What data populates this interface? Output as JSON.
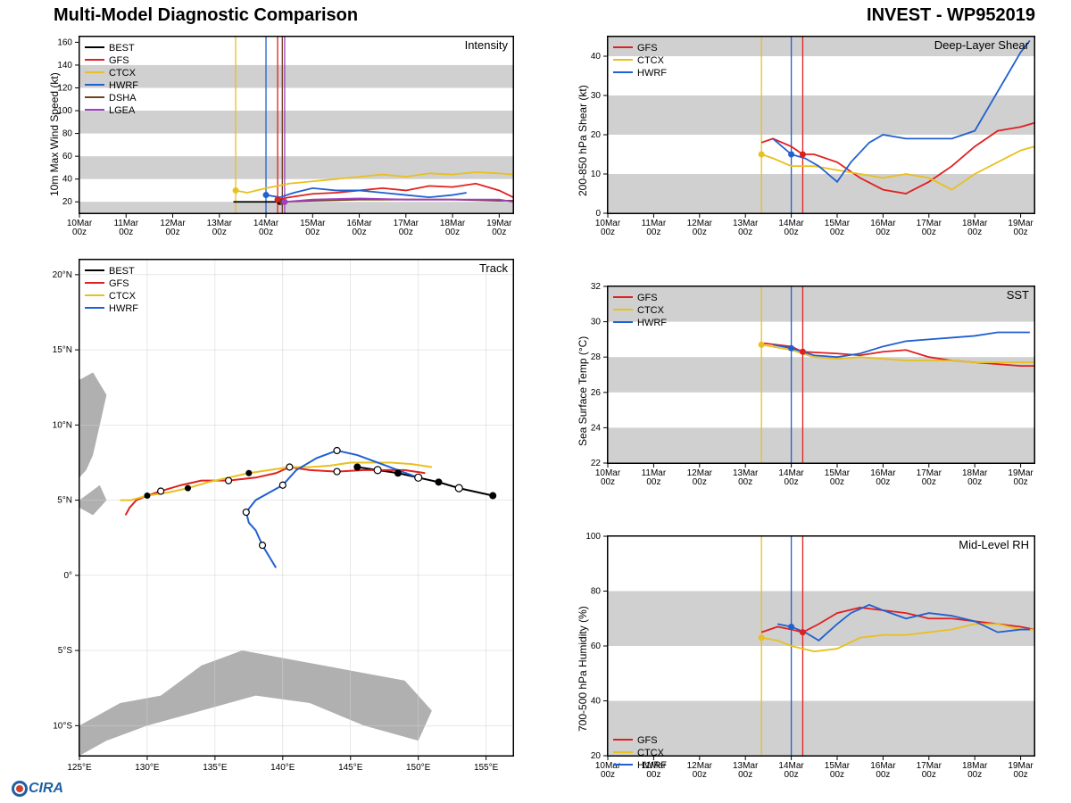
{
  "header": {
    "title_left": "Multi-Model Diagnostic Comparison",
    "title_right": "INVEST - WP952019"
  },
  "colors": {
    "BEST": "#000000",
    "GFS": "#e02020",
    "CTCX": "#e8c020",
    "HWRF": "#2060d0",
    "DSHA": "#704020",
    "LGEA": "#a040c0",
    "grid_band": "#d0d0d0",
    "grid_line": "#d0d0d0",
    "land": "#b0b0b0",
    "border": "#000000"
  },
  "x_time": {
    "ticks": [
      "10Mar\n00z",
      "11Mar\n00z",
      "12Mar\n00z",
      "13Mar\n00z",
      "14Mar\n00z",
      "15Mar\n00z",
      "16Mar\n00z",
      "17Mar\n00z",
      "18Mar\n00z",
      "19Mar\n00z"
    ],
    "indices": [
      0,
      1,
      2,
      3,
      4,
      5,
      6,
      7,
      8,
      9
    ]
  },
  "intensity": {
    "title": "Intensity",
    "ylabel": "10m Max Wind Speed (kt)",
    "ylim": [
      10,
      165
    ],
    "yticks": [
      20,
      40,
      60,
      80,
      100,
      120,
      140,
      160
    ],
    "legend": [
      "BEST",
      "GFS",
      "CTCX",
      "HWRF",
      "DSHA",
      "LGEA"
    ],
    "bands": [
      [
        10,
        20
      ],
      [
        40,
        60
      ],
      [
        80,
        100
      ],
      [
        120,
        140
      ]
    ],
    "vlines": {
      "CTCX": 3.35,
      "HWRF": 4.0,
      "GFS": 4.25,
      "DSHA": 4.35,
      "LGEA": 4.4
    },
    "series": {
      "BEST": [
        [
          3.3,
          20
        ],
        [
          3.6,
          20
        ],
        [
          4.0,
          20
        ],
        [
          4.3,
          20
        ]
      ],
      "GFS": [
        [
          4.25,
          22
        ],
        [
          4.5,
          24
        ],
        [
          5.0,
          27
        ],
        [
          5.5,
          28
        ],
        [
          6.0,
          30
        ],
        [
          6.5,
          32
        ],
        [
          7.0,
          30
        ],
        [
          7.5,
          34
        ],
        [
          8.0,
          33
        ],
        [
          8.5,
          36
        ],
        [
          9.0,
          30
        ],
        [
          9.3,
          24
        ]
      ],
      "CTCX": [
        [
          3.35,
          30
        ],
        [
          3.6,
          28
        ],
        [
          4.0,
          32
        ],
        [
          4.5,
          36
        ],
        [
          5.0,
          38
        ],
        [
          5.5,
          40
        ],
        [
          6.0,
          42
        ],
        [
          6.5,
          44
        ],
        [
          7.0,
          42
        ],
        [
          7.5,
          45
        ],
        [
          8.0,
          44
        ],
        [
          8.5,
          46
        ],
        [
          9.0,
          45
        ],
        [
          9.3,
          44
        ]
      ],
      "HWRF": [
        [
          4.0,
          26
        ],
        [
          4.3,
          24
        ],
        [
          4.6,
          28
        ],
        [
          5.0,
          32
        ],
        [
          5.5,
          30
        ],
        [
          6.0,
          30
        ],
        [
          6.5,
          28
        ],
        [
          7.0,
          26
        ],
        [
          7.5,
          24
        ],
        [
          8.0,
          26
        ],
        [
          8.3,
          28
        ]
      ],
      "DSHA": [
        [
          4.35,
          20
        ],
        [
          5.0,
          21
        ],
        [
          6.0,
          22
        ],
        [
          7.0,
          22
        ],
        [
          8.0,
          22
        ],
        [
          9.0,
          21
        ],
        [
          9.3,
          21
        ]
      ],
      "LGEA": [
        [
          4.4,
          20
        ],
        [
          5.0,
          22
        ],
        [
          6.0,
          23
        ],
        [
          7.0,
          22
        ],
        [
          8.0,
          22
        ],
        [
          9.0,
          22
        ],
        [
          9.3,
          20
        ]
      ]
    },
    "markers": {
      "BEST": [
        4.3,
        20
      ],
      "GFS": [
        4.25,
        22
      ],
      "CTCX": [
        3.35,
        30
      ],
      "HWRF": [
        4.0,
        26
      ],
      "DSHA": [
        4.35,
        20
      ],
      "LGEA": [
        4.4,
        20
      ]
    }
  },
  "shear": {
    "title": "Deep-Layer Shear",
    "ylabel": "200-850 hPa Shear (kt)",
    "ylim": [
      0,
      45
    ],
    "yticks": [
      0,
      10,
      20,
      30,
      40
    ],
    "legend": [
      "GFS",
      "CTCX",
      "HWRF"
    ],
    "bands": [
      [
        0,
        10
      ],
      [
        20,
        30
      ],
      [
        40,
        45
      ]
    ],
    "vlines": {
      "CTCX": 3.35,
      "HWRF": 4.0,
      "GFS": 4.25
    },
    "series": {
      "GFS": [
        [
          3.35,
          18
        ],
        [
          3.6,
          19
        ],
        [
          4.0,
          17
        ],
        [
          4.25,
          15
        ],
        [
          4.5,
          15
        ],
        [
          5.0,
          13
        ],
        [
          5.5,
          9
        ],
        [
          6.0,
          6
        ],
        [
          6.5,
          5
        ],
        [
          7.0,
          8
        ],
        [
          7.5,
          12
        ],
        [
          8.0,
          17
        ],
        [
          8.5,
          21
        ],
        [
          9.0,
          22
        ],
        [
          9.3,
          23
        ]
      ],
      "CTCX": [
        [
          3.35,
          15
        ],
        [
          3.6,
          14
        ],
        [
          4.0,
          12
        ],
        [
          4.5,
          12
        ],
        [
          5.0,
          11
        ],
        [
          5.5,
          10
        ],
        [
          6.0,
          9
        ],
        [
          6.5,
          10
        ],
        [
          7.0,
          9
        ],
        [
          7.5,
          6
        ],
        [
          8.0,
          10
        ],
        [
          8.5,
          13
        ],
        [
          9.0,
          16
        ],
        [
          9.3,
          17
        ]
      ],
      "HWRF": [
        [
          3.6,
          19
        ],
        [
          4.0,
          15
        ],
        [
          4.3,
          14
        ],
        [
          4.6,
          12
        ],
        [
          5.0,
          8
        ],
        [
          5.3,
          13
        ],
        [
          5.7,
          18
        ],
        [
          6.0,
          20
        ],
        [
          6.5,
          19
        ],
        [
          7.0,
          19
        ],
        [
          7.5,
          19
        ],
        [
          8.0,
          21
        ],
        [
          8.3,
          27
        ],
        [
          8.7,
          35
        ],
        [
          9.0,
          41
        ],
        [
          9.2,
          44
        ]
      ]
    },
    "markers": {
      "GFS": [
        4.25,
        15
      ],
      "CTCX": [
        3.35,
        15
      ],
      "HWRF": [
        4.0,
        15
      ]
    }
  },
  "sst": {
    "title": "SST",
    "ylabel": "Sea Surface Temp (°C)",
    "ylim": [
      22,
      32
    ],
    "yticks": [
      22,
      24,
      26,
      28,
      30,
      32
    ],
    "legend": [
      "GFS",
      "CTCX",
      "HWRF"
    ],
    "bands": [
      [
        22,
        24
      ],
      [
        26,
        28
      ],
      [
        30,
        32
      ]
    ],
    "vlines": {
      "CTCX": 3.35,
      "HWRF": 4.0,
      "GFS": 4.25
    },
    "series": {
      "GFS": [
        [
          3.35,
          28.8
        ],
        [
          4.0,
          28.6
        ],
        [
          4.25,
          28.3
        ],
        [
          5.0,
          28.2
        ],
        [
          5.5,
          28.1
        ],
        [
          6.0,
          28.3
        ],
        [
          6.5,
          28.4
        ],
        [
          7.0,
          28.0
        ],
        [
          7.5,
          27.8
        ],
        [
          8.0,
          27.7
        ],
        [
          8.5,
          27.6
        ],
        [
          9.0,
          27.5
        ],
        [
          9.3,
          27.5
        ]
      ],
      "CTCX": [
        [
          3.35,
          28.7
        ],
        [
          4.0,
          28.4
        ],
        [
          4.5,
          28.0
        ],
        [
          5.0,
          27.9
        ],
        [
          5.5,
          28.0
        ],
        [
          6.0,
          27.9
        ],
        [
          6.5,
          27.8
        ],
        [
          7.0,
          27.8
        ],
        [
          7.5,
          27.8
        ],
        [
          8.0,
          27.7
        ],
        [
          8.5,
          27.7
        ],
        [
          9.0,
          27.7
        ],
        [
          9.3,
          27.7
        ]
      ],
      "HWRF": [
        [
          3.6,
          28.7
        ],
        [
          4.0,
          28.5
        ],
        [
          4.5,
          28.1
        ],
        [
          5.0,
          28.0
        ],
        [
          5.5,
          28.2
        ],
        [
          6.0,
          28.6
        ],
        [
          6.5,
          28.9
        ],
        [
          7.0,
          29.0
        ],
        [
          7.5,
          29.1
        ],
        [
          8.0,
          29.2
        ],
        [
          8.5,
          29.4
        ],
        [
          9.0,
          29.4
        ],
        [
          9.2,
          29.4
        ]
      ]
    },
    "markers": {
      "GFS": [
        4.25,
        28.3
      ],
      "CTCX": [
        3.35,
        28.7
      ],
      "HWRF": [
        4.0,
        28.5
      ]
    }
  },
  "rh": {
    "title": "Mid-Level RH",
    "ylabel": "700-500 hPa Humidity (%)",
    "ylim": [
      20,
      100
    ],
    "yticks": [
      20,
      40,
      60,
      80,
      100
    ],
    "legend": [
      "GFS",
      "CTCX",
      "HWRF"
    ],
    "bands": [
      [
        20,
        40
      ],
      [
        60,
        80
      ]
    ],
    "vlines": {
      "CTCX": 3.35,
      "HWRF": 4.0,
      "GFS": 4.25
    },
    "series": {
      "GFS": [
        [
          3.35,
          65
        ],
        [
          3.7,
          67
        ],
        [
          4.0,
          66
        ],
        [
          4.25,
          65
        ],
        [
          4.6,
          68
        ],
        [
          5.0,
          72
        ],
        [
          5.5,
          74
        ],
        [
          6.0,
          73
        ],
        [
          6.5,
          72
        ],
        [
          7.0,
          70
        ],
        [
          7.5,
          70
        ],
        [
          8.0,
          69
        ],
        [
          8.5,
          68
        ],
        [
          9.0,
          67
        ],
        [
          9.3,
          66
        ]
      ],
      "CTCX": [
        [
          3.35,
          63
        ],
        [
          3.7,
          62
        ],
        [
          4.0,
          60
        ],
        [
          4.5,
          58
        ],
        [
          5.0,
          59
        ],
        [
          5.5,
          63
        ],
        [
          6.0,
          64
        ],
        [
          6.5,
          64
        ],
        [
          7.0,
          65
        ],
        [
          7.5,
          66
        ],
        [
          8.0,
          68
        ],
        [
          8.5,
          68
        ],
        [
          9.0,
          66
        ],
        [
          9.3,
          66
        ]
      ],
      "HWRF": [
        [
          3.7,
          68
        ],
        [
          4.0,
          67
        ],
        [
          4.3,
          65
        ],
        [
          4.6,
          62
        ],
        [
          5.0,
          68
        ],
        [
          5.3,
          72
        ],
        [
          5.7,
          75
        ],
        [
          6.0,
          73
        ],
        [
          6.5,
          70
        ],
        [
          7.0,
          72
        ],
        [
          7.5,
          71
        ],
        [
          8.0,
          69
        ],
        [
          8.5,
          65
        ],
        [
          9.0,
          66
        ],
        [
          9.2,
          66
        ]
      ]
    },
    "markers": {
      "GFS": [
        4.25,
        65
      ],
      "CTCX": [
        3.35,
        63
      ],
      "HWRF": [
        4.0,
        67
      ]
    }
  },
  "track": {
    "title": "Track",
    "ylabel_ticks": [
      "10°S",
      "5°S",
      "0°",
      "5°N",
      "10°N",
      "15°N",
      "20°N"
    ],
    "xlabel_ticks": [
      "125°E",
      "130°E",
      "135°E",
      "140°E",
      "145°E",
      "150°E",
      "155°E"
    ],
    "xlim": [
      125,
      157
    ],
    "ylim": [
      -12,
      21
    ],
    "legend": [
      "BEST",
      "GFS",
      "CTCX",
      "HWRF"
    ],
    "series": {
      "BEST": [
        [
          155.5,
          5.3
        ],
        [
          153.0,
          5.8
        ],
        [
          151.5,
          6.2
        ],
        [
          150.0,
          6.5
        ],
        [
          148.5,
          6.8
        ],
        [
          147.0,
          7.0
        ],
        [
          145.5,
          7.2
        ]
      ],
      "GFS": [
        [
          150.5,
          6.8
        ],
        [
          149.0,
          7.0
        ],
        [
          147.5,
          7.0
        ],
        [
          146.0,
          7.0
        ],
        [
          144.0,
          6.9
        ],
        [
          142.0,
          7.0
        ],
        [
          140.5,
          7.2
        ],
        [
          139.5,
          6.8
        ],
        [
          138.0,
          6.5
        ],
        [
          136.0,
          6.3
        ],
        [
          134.0,
          6.3
        ],
        [
          132.5,
          6.0
        ],
        [
          131.0,
          5.6
        ],
        [
          130.0,
          5.3
        ],
        [
          129.2,
          5.0
        ],
        [
          128.7,
          4.5
        ],
        [
          128.4,
          4.0
        ]
      ],
      "CTCX": [
        [
          151.0,
          7.2
        ],
        [
          149.5,
          7.4
        ],
        [
          148.0,
          7.5
        ],
        [
          146.5,
          7.5
        ],
        [
          145.0,
          7.5
        ],
        [
          143.5,
          7.3
        ],
        [
          142.0,
          7.2
        ],
        [
          140.5,
          7.2
        ],
        [
          139.0,
          7.0
        ],
        [
          137.5,
          6.8
        ],
        [
          136.0,
          6.5
        ],
        [
          134.5,
          6.2
        ],
        [
          133.0,
          5.8
        ],
        [
          131.5,
          5.5
        ],
        [
          130.0,
          5.3
        ],
        [
          128.8,
          5.0
        ],
        [
          128.0,
          5.0
        ]
      ],
      "HWRF": [
        [
          150.0,
          6.5
        ],
        [
          148.5,
          7.0
        ],
        [
          147.0,
          7.5
        ],
        [
          145.5,
          8.0
        ],
        [
          144.0,
          8.3
        ],
        [
          142.5,
          7.8
        ],
        [
          141.0,
          7.0
        ],
        [
          140.0,
          6.0
        ],
        [
          139.0,
          5.5
        ],
        [
          138.0,
          5.0
        ],
        [
          137.3,
          4.2
        ],
        [
          137.5,
          3.5
        ],
        [
          138.0,
          3.0
        ],
        [
          138.5,
          2.0
        ],
        [
          139.5,
          0.5
        ]
      ]
    },
    "best_markers_filled": [
      [
        155.5,
        5.3
      ],
      [
        151.5,
        6.2
      ],
      [
        148.5,
        6.8
      ],
      [
        145.5,
        7.2
      ]
    ],
    "best_markers_open": [
      [
        153.0,
        5.8
      ],
      [
        150.0,
        6.5
      ],
      [
        147.0,
        7.0
      ]
    ],
    "ctcx_markers_filled": [
      [
        137.5,
        6.8
      ],
      [
        133.0,
        5.8
      ],
      [
        130.0,
        5.3
      ]
    ],
    "gfs_markers_open": [
      [
        144.0,
        6.9
      ],
      [
        140.5,
        7.2
      ],
      [
        136.0,
        6.3
      ],
      [
        131.0,
        5.6
      ]
    ],
    "hwrf_markers_open": [
      [
        144.0,
        8.3
      ],
      [
        140.0,
        6.0
      ],
      [
        137.3,
        4.2
      ],
      [
        138.5,
        2.0
      ]
    ],
    "land_polys": [
      [
        [
          125,
          -10
        ],
        [
          128,
          -8.5
        ],
        [
          131,
          -8
        ],
        [
          134,
          -6
        ],
        [
          137,
          -5
        ],
        [
          140,
          -5.5
        ],
        [
          143,
          -6
        ],
        [
          146,
          -6.5
        ],
        [
          149,
          -7
        ],
        [
          151,
          -9
        ],
        [
          150,
          -11
        ],
        [
          146,
          -10
        ],
        [
          142,
          -8.5
        ],
        [
          138,
          -8
        ],
        [
          134,
          -9
        ],
        [
          130,
          -10
        ],
        [
          127,
          -11
        ],
        [
          125,
          -12
        ]
      ],
      [
        [
          125,
          13
        ],
        [
          126,
          13.5
        ],
        [
          127,
          12
        ],
        [
          126.5,
          10
        ],
        [
          126,
          8
        ],
        [
          125.5,
          7
        ],
        [
          125,
          6.5
        ],
        [
          125,
          13
        ]
      ],
      [
        [
          125,
          5
        ],
        [
          126.5,
          6
        ],
        [
          127,
          5
        ],
        [
          126,
          4
        ],
        [
          125,
          4.5
        ]
      ]
    ]
  },
  "logo_text": "CIRA"
}
